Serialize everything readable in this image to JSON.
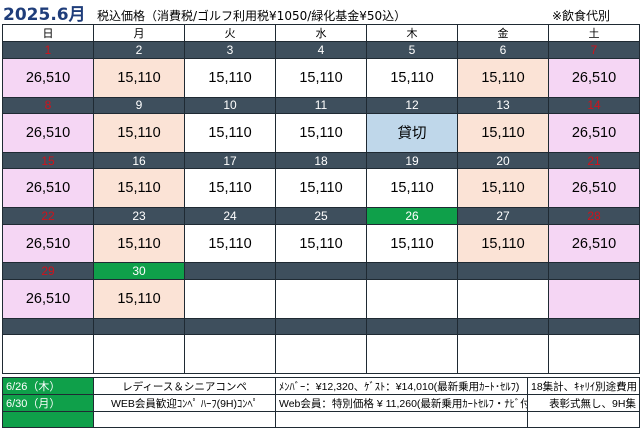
{
  "header": {
    "title": "2025.6月",
    "subtitle": "税込価格（消費税/ゴルフ利用税¥1050/緑化基金¥50込）",
    "note": "※飲食代別"
  },
  "weekdays": [
    "日",
    "月",
    "火",
    "水",
    "木",
    "金",
    "土"
  ],
  "weeks": [
    {
      "days": [
        "1",
        "2",
        "3",
        "4",
        "5",
        "6",
        "7"
      ],
      "prices": [
        "26,510",
        "15,110",
        "15,110",
        "15,110",
        "15,110",
        "15,110",
        "26,510"
      ]
    },
    {
      "days": [
        "8",
        "9",
        "10",
        "11",
        "12",
        "13",
        "14"
      ],
      "prices": [
        "26,510",
        "15,110",
        "15,110",
        "15,110",
        "貸切",
        "15,110",
        "26,510"
      ]
    },
    {
      "days": [
        "15",
        "16",
        "17",
        "18",
        "19",
        "20",
        "21"
      ],
      "prices": [
        "26,510",
        "15,110",
        "15,110",
        "15,110",
        "15,110",
        "15,110",
        "26,510"
      ]
    },
    {
      "days": [
        "22",
        "23",
        "24",
        "25",
        "26",
        "27",
        "28"
      ],
      "prices": [
        "26,510",
        "15,110",
        "15,110",
        "15,110",
        "15,110",
        "15,110",
        "26,510"
      ]
    },
    {
      "days": [
        "29",
        "30",
        "",
        "",
        "",
        "",
        ""
      ],
      "prices": [
        "26,510",
        "15,110",
        "",
        "",
        "",
        "",
        ""
      ]
    }
  ],
  "colors": {
    "holiday_number": "#d0121b",
    "event_day": "#0fa04a",
    "weekend_price": "#f5d6f4",
    "weekday_price": "#fbe3d6",
    "reserved": "#bfd7ea",
    "title": "#1f3d7a"
  },
  "events": [
    {
      "date": "6/26（木）",
      "name": "レディース＆シニアコンペ",
      "detail": "ﾒﾝﾊﾞｰ：¥12,320、ｹﾞｽﾄ：¥14,010(最新乗用ｶｰﾄ･ｾﾙﾌ)",
      "extra": "18集計、ｷｬﾘｲ別途費用"
    },
    {
      "date": "6/30（月）",
      "name": "WEB会員歓迎ｺﾝﾍﾟ ﾊｰﾌ(9H)ｺﾝﾍﾟ",
      "detail": "Web会員：特別価格 ¥ 11,260(最新乗用ｶｰﾄｾﾙﾌ・ﾅﾋﾞ付)",
      "extra": "表彰式無し、9H集"
    }
  ]
}
